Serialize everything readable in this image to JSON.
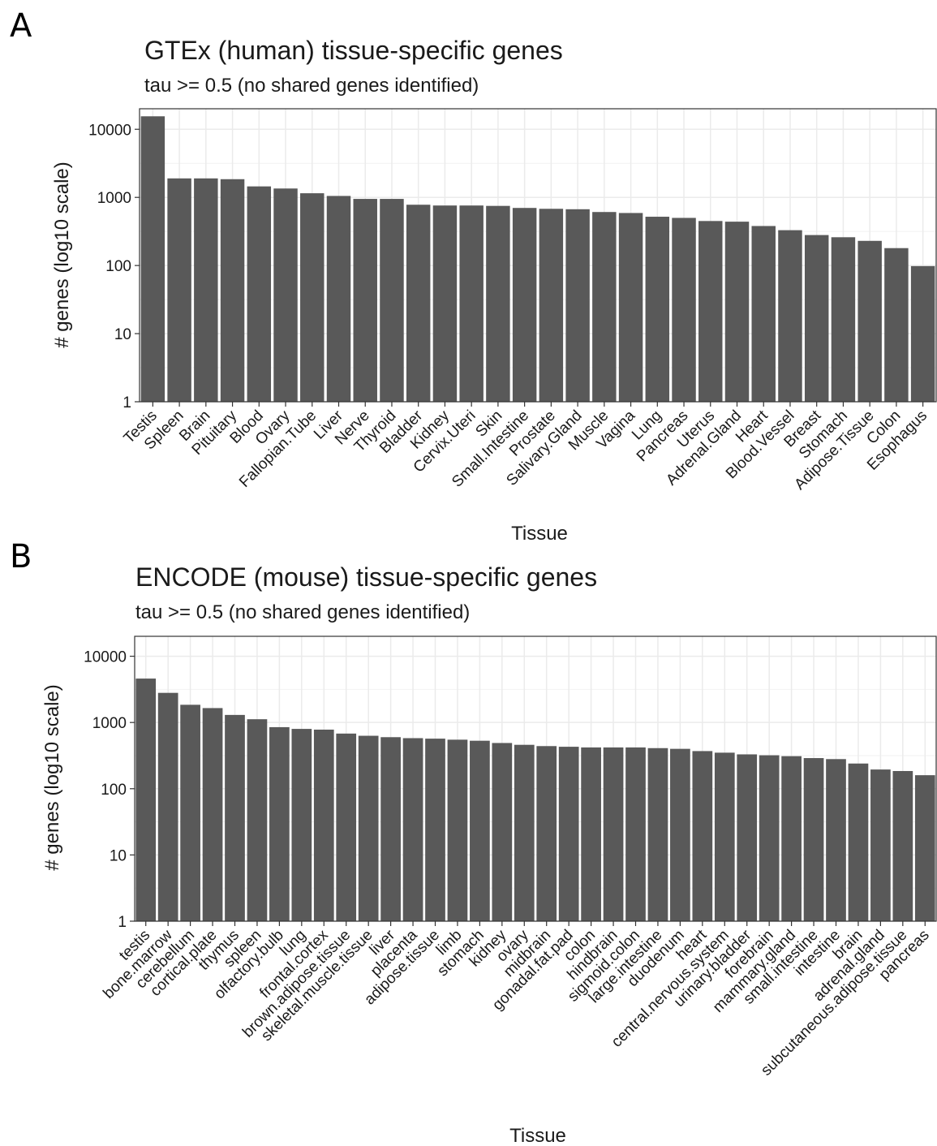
{
  "panels": [
    {
      "letter": "A"
    },
    {
      "letter": "B"
    }
  ],
  "colors": {
    "bar": "#595959",
    "grid": "#ebebeb",
    "panel_border": "#333333",
    "text": "#1a1a1a"
  },
  "chart_data": [
    {
      "type": "bar",
      "title": "GTEx (human) tissue-specific genes",
      "subtitle": "tau >= 0.5 (no shared genes identified)",
      "xlabel": "Tissue",
      "ylabel": "# genes (log10 scale)",
      "yscale": "log10",
      "ylim": [
        1,
        20000
      ],
      "yticks": [
        1,
        10,
        100,
        1000,
        10000
      ],
      "ytick_labels": [
        "1",
        "10",
        "100",
        "1000",
        "10000"
      ],
      "grid": true,
      "categories": [
        "Testis",
        "Spleen",
        "Brain",
        "Pituitary",
        "Blood",
        "Ovary",
        "Fallopian.Tube",
        "Liver",
        "Nerve",
        "Thyroid",
        "Bladder",
        "Kidney",
        "Cervix.Uteri",
        "Skin",
        "Small.Intestine",
        "Prostate",
        "Salivary.Gland",
        "Muscle",
        "Vagina",
        "Lung",
        "Pancreas",
        "Uterus",
        "Adrenal.Gland",
        "Heart",
        "Blood.Vessel",
        "Breast",
        "Stomach",
        "Adipose.Tissue",
        "Colon",
        "Esophagus"
      ],
      "values": [
        15500,
        1900,
        1900,
        1850,
        1450,
        1350,
        1150,
        1050,
        950,
        950,
        780,
        760,
        760,
        750,
        700,
        680,
        670,
        610,
        590,
        520,
        500,
        450,
        440,
        380,
        330,
        280,
        260,
        230,
        180,
        98
      ]
    },
    {
      "type": "bar",
      "title": "ENCODE (mouse) tissue-specific genes",
      "subtitle": "tau >= 0.5 (no shared genes identified)",
      "xlabel": "Tissue",
      "ylabel": "# genes (log10 scale)",
      "yscale": "log10",
      "ylim": [
        1,
        20000
      ],
      "yticks": [
        1,
        10,
        100,
        1000,
        10000
      ],
      "ytick_labels": [
        "1",
        "10",
        "100",
        "1000",
        "10000"
      ],
      "grid": true,
      "categories": [
        "testis",
        "bone.marrow",
        "cerebellum",
        "cortical.plate",
        "thymus",
        "spleen",
        "olfactory.bulb",
        "lung",
        "frontal.cortex",
        "brown.adipose.tissue",
        "skeletal.muscle.tissue",
        "liver",
        "placenta",
        "adipose.tissue",
        "limb",
        "stomach",
        "kidney",
        "ovary",
        "midbrain",
        "gonadal.fat.pad",
        "colon",
        "hindbrain",
        "sigmoid.colon",
        "large.intestine",
        "duodenum",
        "heart",
        "central.nervous.system",
        "urinary.bladder",
        "forebrain",
        "mammary.gland",
        "small.intestine",
        "intestine",
        "brain",
        "adrenal.gland",
        "subcutaneous.adipose.tissue",
        "pancreas"
      ],
      "values": [
        4600,
        2800,
        1850,
        1650,
        1300,
        1120,
        850,
        800,
        780,
        680,
        630,
        600,
        580,
        570,
        550,
        530,
        490,
        460,
        440,
        430,
        420,
        420,
        420,
        410,
        400,
        370,
        350,
        330,
        320,
        310,
        290,
        280,
        240,
        195,
        185,
        160
      ]
    }
  ]
}
